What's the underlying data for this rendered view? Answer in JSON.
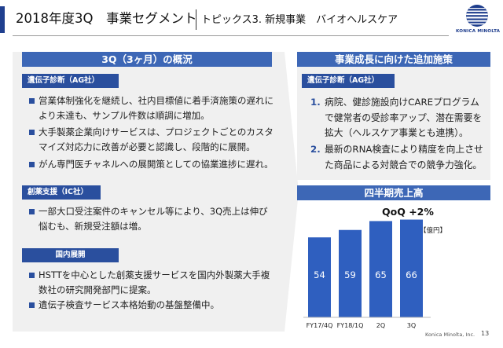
{
  "header": {
    "title": "2018年度3Q　事業セグメント",
    "subtitle": "トピックス3.  新規事業　バイオヘルスケア",
    "logo_text": "KONICA MINOLTA"
  },
  "left": {
    "banner": "3Q（3ヶ月）の概況",
    "sections": [
      {
        "tag": "遺伝子診断（AG社）",
        "bullets": [
          "営業体制強化を継続し、社内目標値に着手済施策の遅れにより未達も、サンプル件数は順調に増加。",
          "大手製薬企業向けサービスは、プロジェクトごとのカスタマイズ対応力に改善が必要と認識し、段階的に展開。",
          "がん専門医チャネルへの展開策としての協業進捗に遅れ。"
        ]
      },
      {
        "tag": "創薬支援（IC社）",
        "bullets": [
          "一部大口受注案件のキャンセル等により、3Q売上は伸び悩むも、新規受注額は増。"
        ]
      },
      {
        "tag": "国内展開",
        "bullets": [
          "HSTTを中心とした創薬支援サービスを国内外製薬大手複数社の研究開発部門に提案。",
          "遺伝子検査サービス本格始動の基盤整備中。"
        ]
      }
    ]
  },
  "right": {
    "banner": "事業成長に向けた追加施策",
    "tag": "遺伝子診断（AG社）",
    "items": [
      {
        "num": "1.",
        "text": "病院、健診施設向けCAREプログラムで健常者の受診率アップ、潜在需要を拡大（ヘルスケア事業とも連携）。"
      },
      {
        "num": "2.",
        "text": "最新のRNA検査により精度を向上させた商品による対競合での競争力強化。"
      }
    ],
    "chart_banner": "四半期売上高"
  },
  "chart_data": {
    "type": "bar",
    "title": "QoQ +2%",
    "unit_label": "【億円】",
    "categories": [
      "FY17/4Q",
      "FY18/1Q",
      "2Q",
      "3Q"
    ],
    "values": [
      54,
      59,
      65,
      66
    ],
    "ylim": [
      0,
      70
    ],
    "bar_color": "#2f5fbf",
    "grid": false
  },
  "footer": {
    "company": "Konica Minolta, Inc.",
    "page": "13"
  },
  "colors": {
    "accent": "#1f3f8f",
    "banner": "#3d67b6",
    "tag": "#2a4f9e",
    "panel": "#f0f0f0"
  }
}
